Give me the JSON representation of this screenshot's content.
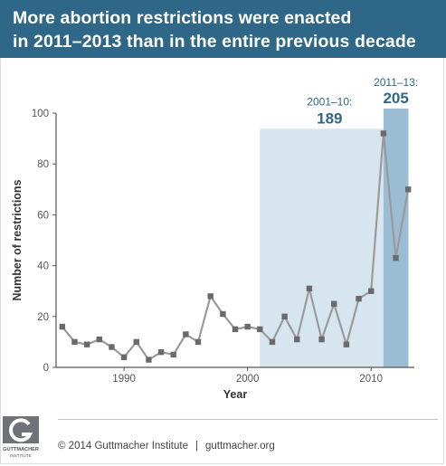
{
  "header": {
    "title_line1": "More abortion restrictions were enacted",
    "title_line2": "in 2011–2013 than in the entire previous decade"
  },
  "chart_data": {
    "type": "line",
    "ylabel": "Number of restrictions",
    "xlabel": "Year",
    "xlim": [
      1984.5,
      2013.5
    ],
    "ylim": [
      0,
      100
    ],
    "x_ticks": [
      1990,
      2000,
      2010
    ],
    "y_ticks": [
      0,
      20,
      40,
      60,
      80,
      100
    ],
    "grid": false,
    "series": [
      {
        "x": [
          1985,
          1986,
          1987,
          1988,
          1989,
          1990,
          1991,
          1992,
          1993,
          1994,
          1995,
          1996,
          1997,
          1998,
          1999,
          2000,
          2001,
          2002,
          2003,
          2004,
          2005,
          2006,
          2007,
          2008,
          2009,
          2010,
          2011,
          2012,
          2013
        ],
        "y": [
          16,
          10,
          9,
          11,
          8,
          4,
          10,
          3,
          6,
          5,
          13,
          10,
          28,
          21,
          15,
          16,
          15,
          10,
          20,
          11,
          31,
          11,
          25,
          9,
          27,
          30,
          92,
          43,
          70
        ]
      }
    ],
    "annotations": [
      {
        "label": "2001–10:",
        "value": "189",
        "x_range": [
          2001,
          2011
        ]
      },
      {
        "label": "2011–13:",
        "value": "205",
        "x_range": [
          2011,
          2013
        ]
      }
    ],
    "colors": {
      "line": "#9a9a9a",
      "marker": "#6a6a6a",
      "band_2001_10": "#d6e5ee",
      "band_2011_13": "#9bbdd3",
      "annotation_label": "#2e6787",
      "axis": "#555555"
    }
  },
  "footer": {
    "logo_text_line1": "GUTTMACHER",
    "logo_text_line2": "INSTITUTE",
    "copyright": "© 2014 Guttmacher Institute",
    "separator": "|",
    "website": "guttmacher.org"
  }
}
